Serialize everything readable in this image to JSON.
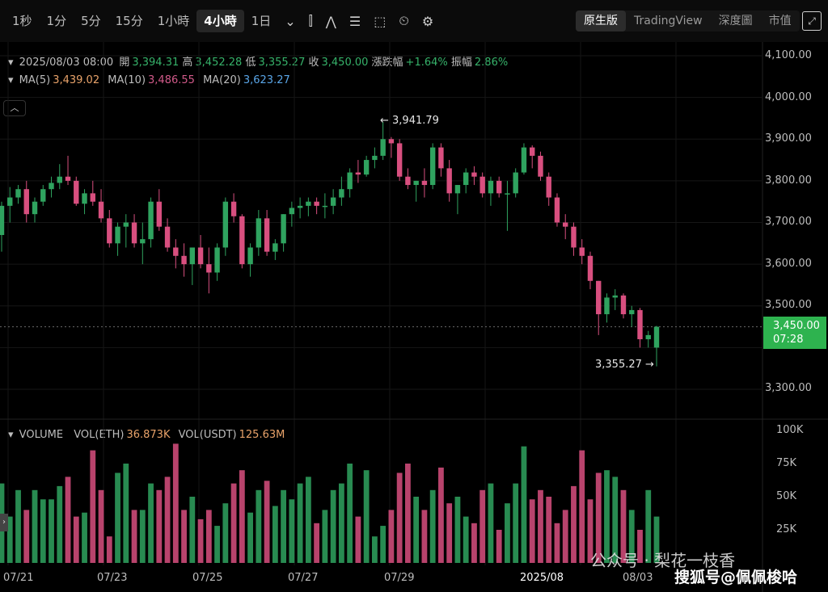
{
  "timeframes": [
    "1秒",
    "1分",
    "5分",
    "15分",
    "1小時",
    "4小時",
    "1日"
  ],
  "active_timeframe": "4小時",
  "views": [
    "原生版",
    "TradingView",
    "深度圖",
    "市值"
  ],
  "active_view": "原生版",
  "ohlc": {
    "date": "2025/08/03 08:00",
    "open_label": "開",
    "open": "3,394.31",
    "high_label": "高",
    "high": "3,452.28",
    "low_label": "低",
    "low": "3,355.27",
    "close_label": "收",
    "close": "3,450.00",
    "change_label": "漲跌幅",
    "change": "+1.64%",
    "amp_label": "振幅",
    "amp": "2.86%"
  },
  "ma": {
    "ma5_label": "MA(5)",
    "ma5": "3,439.02",
    "ma10_label": "MA(10)",
    "ma10": "3,486.55",
    "ma20_label": "MA(20)",
    "ma20": "3,623.27"
  },
  "volume": {
    "title": "VOLUME",
    "eth_label": "VOL(ETH)",
    "eth": "36.873K",
    "usdt_label": "VOL(USDT)",
    "usdt": "125.63M"
  },
  "price_axis": [
    "4,100.00",
    "4,000.00",
    "3,900.00",
    "3,800.00",
    "3,700.00",
    "3,600.00",
    "3,500.00",
    "3,300.00"
  ],
  "volume_axis": [
    "100K",
    "75K",
    "50K",
    "25K"
  ],
  "date_axis": [
    "07/21",
    "07/23",
    "07/25",
    "07/27",
    "07/29",
    "2025/08",
    "08/03"
  ],
  "current_price": "3,450.00",
  "countdown": "07:28",
  "high_marker": "3,941.79",
  "low_marker": "3,355.27",
  "watermark": "公众号 · 梨花一枝香",
  "watermark2": "搜狐号@佩佩梭哈",
  "colors": {
    "up": "#2fa35f",
    "down": "#d84f7f"
  },
  "chart_data": {
    "type": "candlestick",
    "candles": [
      [
        3670,
        3750,
        3630,
        3740
      ],
      [
        3740,
        3785,
        3700,
        3760
      ],
      [
        3760,
        3790,
        3745,
        3780
      ],
      [
        3780,
        3800,
        3700,
        3720
      ],
      [
        3720,
        3760,
        3700,
        3750
      ],
      [
        3750,
        3790,
        3740,
        3780
      ],
      [
        3780,
        3810,
        3760,
        3795
      ],
      [
        3795,
        3840,
        3780,
        3810
      ],
      [
        3810,
        3860,
        3790,
        3800
      ],
      [
        3800,
        3810,
        3740,
        3745
      ],
      [
        3745,
        3780,
        3720,
        3770
      ],
      [
        3770,
        3800,
        3740,
        3750
      ],
      [
        3750,
        3780,
        3700,
        3710
      ],
      [
        3710,
        3730,
        3640,
        3650
      ],
      [
        3650,
        3700,
        3620,
        3690
      ],
      [
        3690,
        3720,
        3640,
        3700
      ],
      [
        3700,
        3720,
        3640,
        3650
      ],
      [
        3650,
        3700,
        3600,
        3660
      ],
      [
        3660,
        3760,
        3640,
        3750
      ],
      [
        3750,
        3780,
        3680,
        3690
      ],
      [
        3690,
        3710,
        3630,
        3640
      ],
      [
        3640,
        3660,
        3590,
        3620
      ],
      [
        3620,
        3650,
        3570,
        3600
      ],
      [
        3600,
        3640,
        3550,
        3640
      ],
      [
        3640,
        3670,
        3590,
        3600
      ],
      [
        3600,
        3640,
        3530,
        3580
      ],
      [
        3580,
        3650,
        3560,
        3640
      ],
      [
        3640,
        3760,
        3620,
        3750
      ],
      [
        3750,
        3770,
        3700,
        3715
      ],
      [
        3715,
        3720,
        3590,
        3600
      ],
      [
        3600,
        3650,
        3570,
        3640
      ],
      [
        3640,
        3730,
        3620,
        3710
      ],
      [
        3710,
        3730,
        3620,
        3630
      ],
      [
        3630,
        3660,
        3610,
        3650
      ],
      [
        3650,
        3720,
        3630,
        3720
      ],
      [
        3720,
        3750,
        3690,
        3735
      ],
      [
        3735,
        3760,
        3710,
        3740
      ],
      [
        3740,
        3760,
        3715,
        3750
      ],
      [
        3750,
        3760,
        3720,
        3740
      ],
      [
        3740,
        3770,
        3710,
        3740
      ],
      [
        3740,
        3780,
        3720,
        3760
      ],
      [
        3760,
        3810,
        3740,
        3780
      ],
      [
        3780,
        3830,
        3760,
        3820
      ],
      [
        3820,
        3850,
        3795,
        3815
      ],
      [
        3815,
        3860,
        3810,
        3850
      ],
      [
        3850,
        3880,
        3830,
        3860
      ],
      [
        3860,
        3941,
        3850,
        3900
      ],
      [
        3900,
        3905,
        3855,
        3890
      ],
      [
        3890,
        3900,
        3800,
        3810
      ],
      [
        3810,
        3830,
        3780,
        3790
      ],
      [
        3790,
        3800,
        3750,
        3800
      ],
      [
        3800,
        3830,
        3760,
        3790
      ],
      [
        3790,
        3890,
        3780,
        3880
      ],
      [
        3880,
        3890,
        3810,
        3830
      ],
      [
        3830,
        3850,
        3750,
        3770
      ],
      [
        3770,
        3790,
        3720,
        3790
      ],
      [
        3790,
        3830,
        3770,
        3820
      ],
      [
        3820,
        3835,
        3790,
        3810
      ],
      [
        3810,
        3820,
        3760,
        3770
      ],
      [
        3770,
        3810,
        3740,
        3800
      ],
      [
        3800,
        3810,
        3760,
        3770
      ],
      [
        3770,
        3800,
        3680,
        3770
      ],
      [
        3770,
        3830,
        3760,
        3820
      ],
      [
        3820,
        3890,
        3815,
        3880
      ],
      [
        3880,
        3885,
        3830,
        3860
      ],
      [
        3860,
        3870,
        3800,
        3810
      ],
      [
        3810,
        3820,
        3740,
        3760
      ],
      [
        3760,
        3770,
        3690,
        3700
      ],
      [
        3700,
        3720,
        3660,
        3690
      ],
      [
        3690,
        3700,
        3620,
        3640
      ],
      [
        3640,
        3660,
        3600,
        3620
      ],
      [
        3620,
        3630,
        3540,
        3560
      ],
      [
        3560,
        3560,
        3430,
        3480
      ],
      [
        3480,
        3530,
        3460,
        3520
      ],
      [
        3520,
        3540,
        3490,
        3525
      ],
      [
        3525,
        3530,
        3470,
        3480
      ],
      [
        3480,
        3500,
        3450,
        3490
      ],
      [
        3490,
        3495,
        3400,
        3420
      ],
      [
        3420,
        3440,
        3400,
        3430
      ],
      [
        3400,
        3452,
        3355,
        3450
      ]
    ],
    "volume": [
      60,
      35,
      55,
      40,
      55,
      48,
      48,
      58,
      65,
      35,
      38,
      85,
      55,
      20,
      68,
      75,
      40,
      40,
      60,
      55,
      65,
      90,
      40,
      50,
      33,
      40,
      28,
      45,
      60,
      70,
      38,
      55,
      62,
      43,
      55,
      48,
      60,
      65,
      30,
      40,
      55,
      60,
      75,
      35,
      70,
      20,
      28,
      40,
      68,
      75,
      50,
      40,
      55,
      72,
      45,
      50,
      35,
      30,
      55,
      60,
      25,
      45,
      60,
      88,
      48,
      55,
      50,
      30,
      40,
      58,
      85,
      48,
      68,
      70,
      65,
      55,
      40,
      25,
      55,
      35
    ]
  }
}
